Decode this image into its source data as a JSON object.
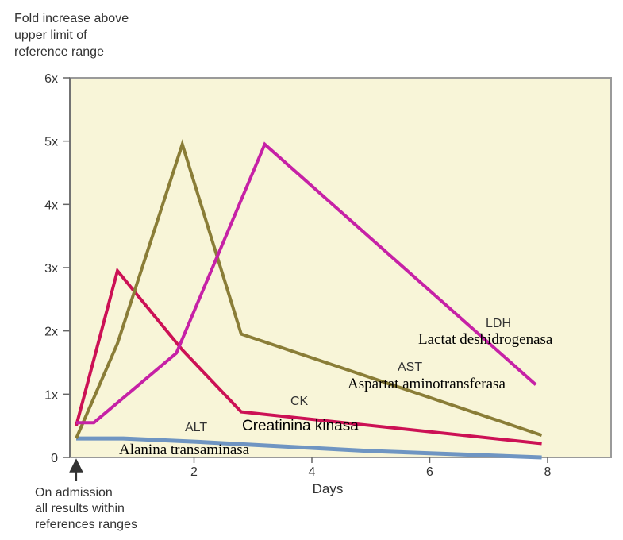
{
  "chart_data": {
    "type": "line",
    "ylabel": "Fold increase above upper limit of reference range",
    "ylabel_lines": [
      "Fold increase above",
      "upper limit of",
      "reference range"
    ],
    "xlabel": "Days",
    "xlim": [
      0,
      8
    ],
    "ylim": [
      0,
      6
    ],
    "xticks": [
      {
        "value": 2,
        "label": "2"
      },
      {
        "value": 4,
        "label": "4"
      },
      {
        "value": 6,
        "label": "6"
      },
      {
        "value": 8,
        "label": "8"
      }
    ],
    "yticks": [
      {
        "value": 0,
        "label": "0"
      },
      {
        "value": 1,
        "label": "1x"
      },
      {
        "value": 2,
        "label": "2x"
      },
      {
        "value": 3,
        "label": "3x"
      },
      {
        "value": 4,
        "label": "4x"
      },
      {
        "value": 5,
        "label": "5x"
      },
      {
        "value": 6,
        "label": "6x"
      }
    ],
    "annotation": {
      "lines": [
        "On admission",
        "all results within",
        "references ranges"
      ],
      "x": 0
    },
    "plot_background": "#f8f5d8",
    "series": [
      {
        "name": "ALT",
        "translation": "Alanina transaminasa",
        "color": "#6f95c2",
        "points": [
          [
            0,
            0.3
          ],
          [
            0.8,
            0.3
          ],
          [
            2,
            0.25
          ],
          [
            3,
            0.2
          ],
          [
            5,
            0.1
          ],
          [
            7.9,
            0
          ]
        ]
      },
      {
        "name": "CK",
        "translation": "Creatinina kinasa",
        "color": "#cc1155",
        "points": [
          [
            0,
            0.5
          ],
          [
            0.7,
            2.95
          ],
          [
            1.8,
            1.7
          ],
          [
            2.8,
            0.72
          ],
          [
            7.9,
            0.22
          ]
        ]
      },
      {
        "name": "AST",
        "translation": "Aspartat aminotransferasa",
        "color": "#8a7d37",
        "points": [
          [
            0,
            0.3
          ],
          [
            0.7,
            1.8
          ],
          [
            1.8,
            4.95
          ],
          [
            2.8,
            1.95
          ],
          [
            7.9,
            0.35
          ]
        ]
      },
      {
        "name": "LDH",
        "translation": "Lactat deshidrogenasa",
        "color": "#c621a6",
        "points": [
          [
            0,
            0.55
          ],
          [
            0.3,
            0.55
          ],
          [
            1.7,
            1.65
          ],
          [
            3.2,
            4.95
          ],
          [
            7.8,
            1.15
          ]
        ]
      }
    ]
  }
}
